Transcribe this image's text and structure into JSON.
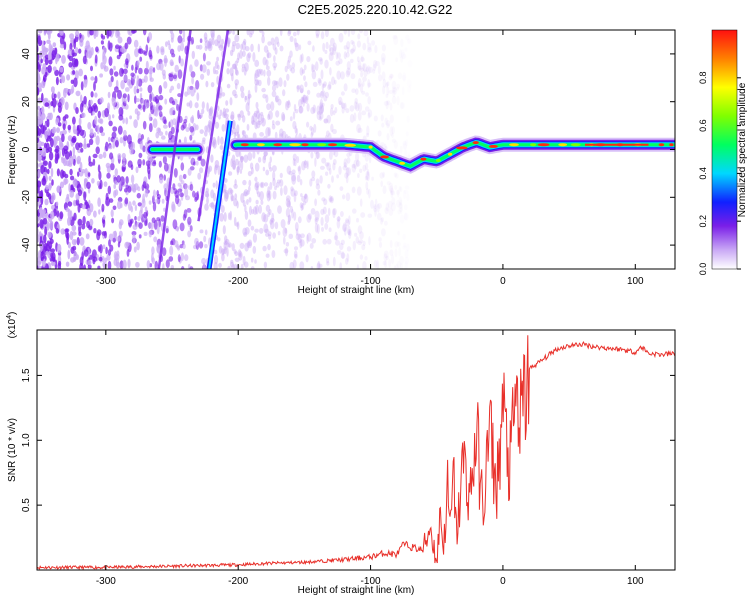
{
  "title": "C2E5.2025.220.10.42.G22",
  "chart_data": [
    {
      "type": "heatmap",
      "xlabel": "Height of straight line (km)",
      "ylabel": "Frequency (Hz)",
      "xlim": [
        -352,
        130
      ],
      "ylim": [
        -50,
        50
      ],
      "xticks": [
        -300,
        -200,
        -100,
        0,
        100
      ],
      "yticks": [
        -40,
        -20,
        0,
        20,
        40
      ],
      "colorbar": {
        "label": "Normalized spectral amplitude",
        "range": [
          0,
          1
        ],
        "ticks": [
          "0.0",
          "0.2",
          "0.4",
          "0.6",
          "0.8"
        ],
        "tick_values": [
          0,
          0.2,
          0.4,
          0.6,
          0.8
        ]
      },
      "signal_track": {
        "x": [
          -265,
          -255,
          -240,
          -230,
          -200,
          -150,
          -120,
          -100,
          -90,
          -80,
          -70,
          -60,
          -50,
          -40,
          -30,
          -20,
          -10,
          0,
          20,
          40,
          60,
          80,
          100,
          130
        ],
        "frequency": [
          0,
          0,
          0,
          0,
          2,
          2,
          2,
          1,
          -3,
          -5,
          -7,
          -4,
          -5,
          -2,
          1,
          3,
          1,
          2,
          2,
          2,
          2,
          2,
          2,
          2
        ]
      },
      "streak_line": {
        "x": [
          -222,
          -206
        ],
        "frequency": [
          -50,
          12
        ]
      },
      "noise_region_end_x": -140
    },
    {
      "type": "line",
      "xlabel": "Height of straight line (km)",
      "ylabel": "SNR (10 * v/v)",
      "scale_note": "(x10",
      "scale_exp": "4",
      "xlim": [
        -352,
        130
      ],
      "ylim": [
        0,
        1.85
      ],
      "xticks": [
        -300,
        -200,
        -100,
        0,
        100
      ],
      "yticks": [
        0.5,
        1.0,
        1.5
      ],
      "ytick_labels": [
        "0.5",
        "1.0",
        "1.5"
      ],
      "series": [
        {
          "color": "#e8302a",
          "x": [
            -352,
            -300,
            -250,
            -200,
            -180,
            -150,
            -120,
            -100,
            -90,
            -80,
            -75,
            -70,
            -60,
            -55,
            -50,
            -47,
            -45,
            -42,
            -40,
            -37,
            -35,
            -30,
            -25,
            -20,
            -15,
            -10,
            -5,
            0,
            5,
            10,
            13,
            20,
            30,
            40,
            50,
            60,
            70,
            80,
            90,
            100,
            105,
            110,
            120,
            130
          ],
          "y": [
            0.02,
            0.02,
            0.03,
            0.04,
            0.05,
            0.06,
            0.08,
            0.1,
            0.13,
            0.12,
            0.2,
            0.18,
            0.15,
            0.35,
            0.05,
            0.5,
            0.12,
            0.65,
            0.3,
            0.72,
            0.25,
            0.85,
            0.55,
            1.05,
            0.45,
            1.1,
            0.6,
            1.25,
            0.75,
            1.35,
            1.1,
            1.55,
            1.62,
            1.7,
            1.73,
            1.74,
            1.72,
            1.71,
            1.7,
            1.68,
            1.72,
            1.67,
            1.66,
            1.67
          ]
        }
      ]
    }
  ]
}
